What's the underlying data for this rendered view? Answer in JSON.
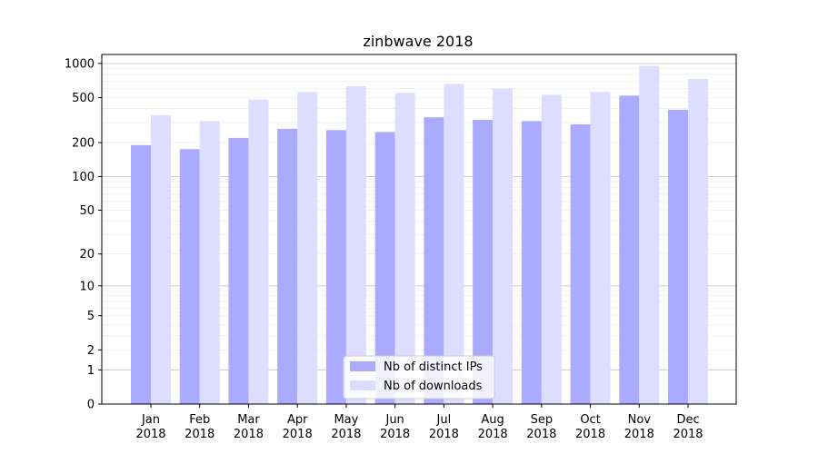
{
  "chart_data": {
    "type": "bar",
    "title": "zinbwave 2018",
    "xlabel": "",
    "ylabel": "",
    "y_scale": "log1p",
    "yticks": [
      0,
      1,
      2,
      5,
      10,
      20,
      50,
      100,
      200,
      500,
      1000
    ],
    "ytick_labels": [
      "0",
      "1",
      "2",
      "5",
      "10",
      "20",
      "50",
      "100",
      "200",
      "500",
      "1000"
    ],
    "ylim": [
      0,
      1200
    ],
    "grid": true,
    "legend_position": "bottom-center",
    "categories": [
      {
        "month": "Jan",
        "year": "2018"
      },
      {
        "month": "Feb",
        "year": "2018"
      },
      {
        "month": "Mar",
        "year": "2018"
      },
      {
        "month": "Apr",
        "year": "2018"
      },
      {
        "month": "May",
        "year": "2018"
      },
      {
        "month": "Jun",
        "year": "2018"
      },
      {
        "month": "Jul",
        "year": "2018"
      },
      {
        "month": "Aug",
        "year": "2018"
      },
      {
        "month": "Sep",
        "year": "2018"
      },
      {
        "month": "Oct",
        "year": "2018"
      },
      {
        "month": "Nov",
        "year": "2018"
      },
      {
        "month": "Dec",
        "year": "2018"
      }
    ],
    "series": [
      {
        "name": "Nb of distinct IPs",
        "color": "#aaaaff",
        "values": [
          190,
          175,
          220,
          265,
          258,
          248,
          335,
          318,
          310,
          290,
          520,
          390
        ]
      },
      {
        "name": "Nb of downloads",
        "color": "#ddddff",
        "values": [
          350,
          310,
          480,
          560,
          630,
          550,
          660,
          600,
          530,
          560,
          950,
          730
        ]
      }
    ]
  }
}
